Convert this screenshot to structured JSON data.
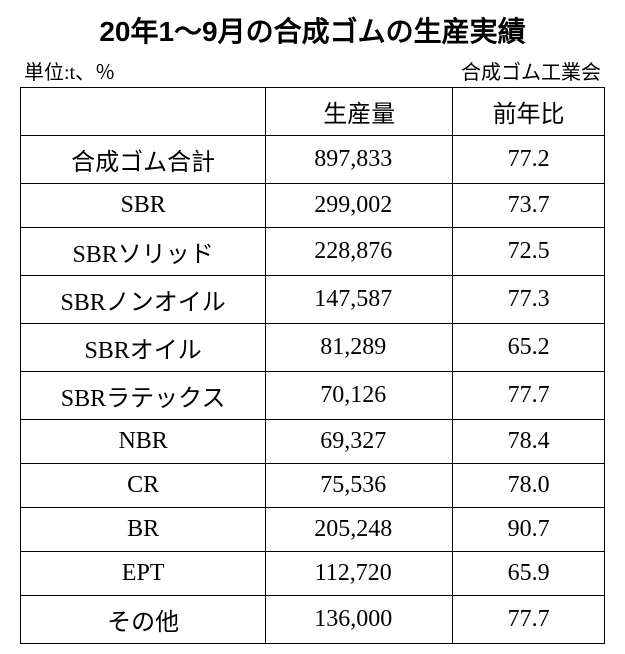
{
  "title": "20年1～9月の合成ゴムの生産実績",
  "unit_label": "単位:t、％",
  "source_label": "合成ゴム工業会",
  "table": {
    "type": "table",
    "columns": [
      {
        "key": "category",
        "label": "",
        "width": "42%",
        "align": "center"
      },
      {
        "key": "production",
        "label": "生産量",
        "width": "32%",
        "align": "center"
      },
      {
        "key": "yoy",
        "label": "前年比",
        "width": "26%",
        "align": "center"
      }
    ],
    "rows": [
      {
        "category": "合成ゴム合計",
        "production": "897,833",
        "yoy": "77.2"
      },
      {
        "category": "SBR",
        "production": "299,002",
        "yoy": "73.7"
      },
      {
        "category": "SBRソリッド",
        "production": "228,876",
        "yoy": "72.5"
      },
      {
        "category": "SBRノンオイル",
        "production": "147,587",
        "yoy": "77.3"
      },
      {
        "category": "SBRオイル",
        "production": "81,289",
        "yoy": "65.2"
      },
      {
        "category": "SBRラテックス",
        "production": "70,126",
        "yoy": "77.7"
      },
      {
        "category": "NBR",
        "production": "69,327",
        "yoy": "78.4"
      },
      {
        "category": "CR",
        "production": "75,536",
        "yoy": "78.0"
      },
      {
        "category": "BR",
        "production": "205,248",
        "yoy": "90.7"
      },
      {
        "category": "EPT",
        "production": "112,720",
        "yoy": "65.9"
      },
      {
        "category": "その他",
        "production": "136,000",
        "yoy": "77.7"
      }
    ],
    "border_color": "#000000",
    "background_color": "#ffffff",
    "text_color": "#000000",
    "title_fontsize": 28,
    "body_fontsize": 24,
    "subheader_fontsize": 20
  }
}
